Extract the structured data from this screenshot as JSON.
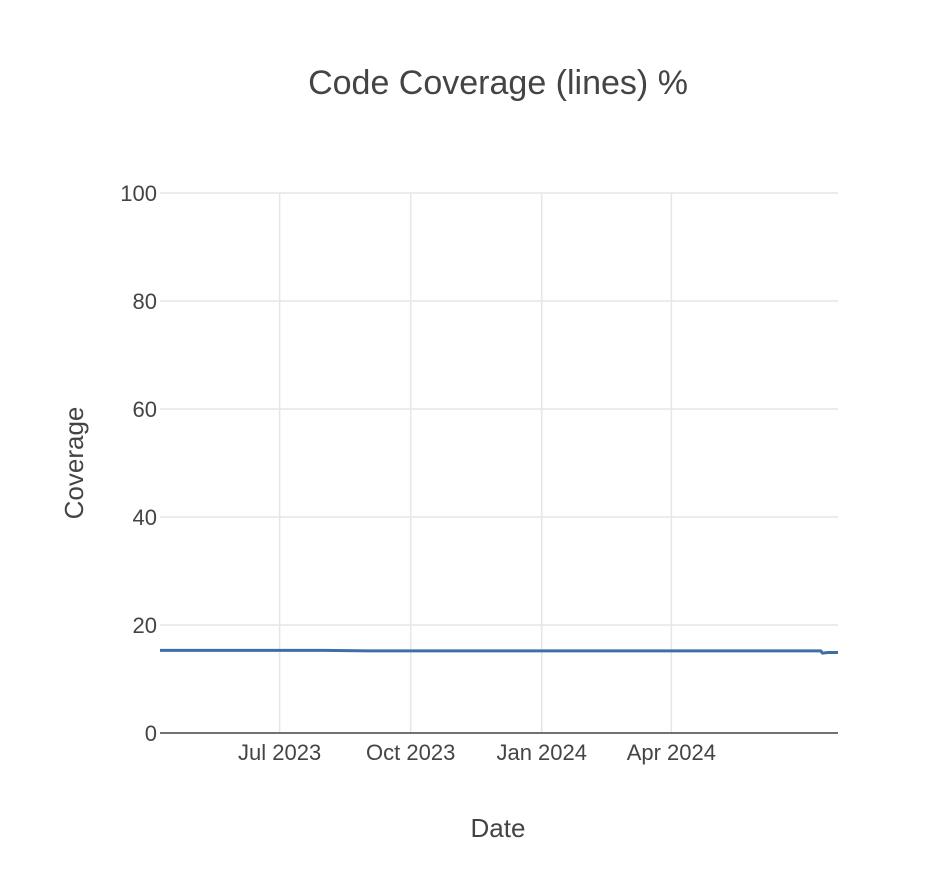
{
  "chart_data": {
    "type": "line",
    "title": "Code Coverage (lines) %",
    "xlabel": "Date",
    "ylabel": "Coverage",
    "ylim": [
      0,
      100
    ],
    "xlim": [
      "2023-04-08",
      "2024-07-27"
    ],
    "y_ticks": [
      0,
      20,
      40,
      60,
      80,
      100
    ],
    "x_ticks": [
      {
        "date": "2023-07-01",
        "label": "Jul 2023"
      },
      {
        "date": "2023-10-01",
        "label": "Oct 2023"
      },
      {
        "date": "2024-01-01",
        "label": "Jan 2024"
      },
      {
        "date": "2024-04-01",
        "label": "Apr 2024"
      }
    ],
    "grid": true,
    "legend": "none",
    "series": [
      {
        "color": "#3d6fa6",
        "x": [
          "2023-04-08",
          "2023-06-01",
          "2023-08-01",
          "2023-09-01",
          "2023-11-01",
          "2024-01-01",
          "2024-03-01",
          "2024-05-01",
          "2024-07-01",
          "2024-07-15",
          "2024-07-16",
          "2024-07-20",
          "2024-07-27"
        ],
        "y": [
          15.3,
          15.3,
          15.3,
          15.2,
          15.2,
          15.2,
          15.2,
          15.2,
          15.2,
          15.2,
          14.8,
          14.9,
          14.9
        ]
      }
    ]
  }
}
